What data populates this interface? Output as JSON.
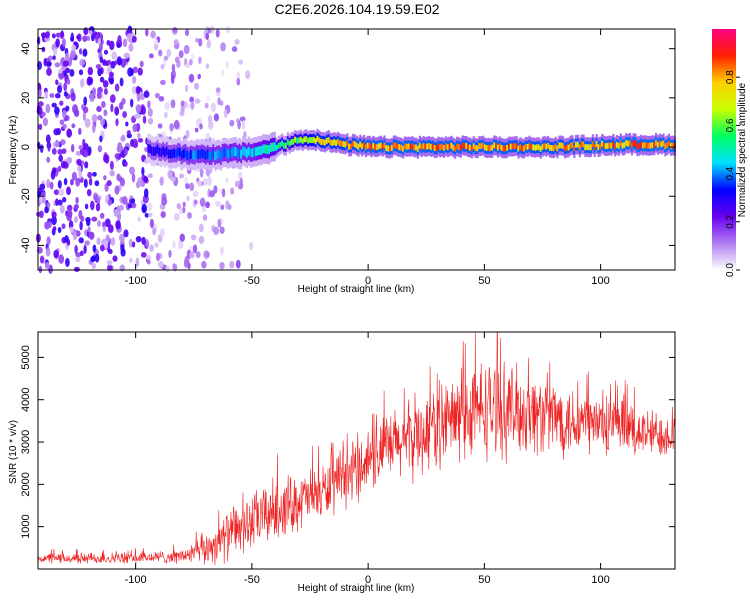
{
  "chart_data": [
    {
      "type": "heatmap",
      "title": "C2E6.2026.104.19.59.E02",
      "xlabel": "Height of straight line (km)",
      "ylabel": "Frequency (Hz)",
      "xlim": [
        -142,
        132
      ],
      "ylim": [
        -50,
        48
      ],
      "xticks": [
        -100,
        -50,
        0,
        50,
        100
      ],
      "yticks": [
        -40,
        -20,
        0,
        20,
        40
      ],
      "xtick_labels": [
        "-100",
        "-50",
        "0",
        "50",
        "100"
      ],
      "ytick_labels": [
        "-40",
        "-20",
        "0",
        "20",
        "40"
      ],
      "colorbar": {
        "label": "Normalized spectral amplitude",
        "range": [
          0.0,
          1.0
        ],
        "ticks": [
          0.0,
          0.2,
          0.4,
          0.6,
          0.8
        ],
        "tick_labels": [
          "0.0",
          "0.2",
          "0.4",
          "0.6",
          "0.8"
        ],
        "colormap": [
          "#ffffff",
          "#b07cf0",
          "#6a00f0",
          "#0000ff",
          "#00e0ff",
          "#00ff60",
          "#c8ff00",
          "#ffd000",
          "#ff2000",
          "#ff0080"
        ]
      },
      "trace": {
        "x": [
          -95,
          -80,
          -65,
          -50,
          -40,
          -30,
          -22,
          -10,
          0,
          20,
          50,
          80,
          110,
          132
        ],
        "frequency": [
          -1,
          -3,
          -3,
          -2,
          0,
          3,
          3,
          1,
          0,
          0,
          0,
          0,
          1,
          1
        ],
        "amplitude": [
          0.3,
          0.38,
          0.42,
          0.45,
          0.55,
          0.65,
          0.78,
          0.82,
          0.85,
          0.85,
          0.85,
          0.83,
          0.86,
          0.85
        ]
      },
      "noise_region_x": [
        -142,
        -65
      ]
    },
    {
      "type": "line",
      "title": "",
      "xlabel": "Height of straight line (km)",
      "ylabel": "SNR (10 * v/v)",
      "xlim": [
        -142,
        132
      ],
      "ylim": [
        0,
        5600
      ],
      "xticks": [
        -100,
        -50,
        0,
        50,
        100
      ],
      "yticks": [
        1000,
        2000,
        3000,
        4000,
        5000
      ],
      "xtick_labels": [
        "-100",
        "-50",
        "0",
        "50",
        "100"
      ],
      "ytick_labels": [
        "1000",
        "2000",
        "3000",
        "4000",
        "5000"
      ],
      "line_color": "#ee2222",
      "series": [
        {
          "name": "SNR",
          "x": [
            -142,
            -120,
            -100,
            -80,
            -70,
            -60,
            -50,
            -40,
            -30,
            -20,
            -10,
            0,
            10,
            20,
            30,
            40,
            50,
            60,
            70,
            80,
            90,
            100,
            110,
            120,
            132
          ],
          "center": [
            250,
            250,
            260,
            300,
            450,
            800,
            1100,
            1400,
            1600,
            1800,
            2100,
            2600,
            2900,
            3100,
            3400,
            3600,
            3800,
            3750,
            3700,
            3600,
            3500,
            3400,
            3300,
            3200,
            3200
          ],
          "spread": [
            150,
            160,
            160,
            200,
            450,
            700,
            800,
            900,
            800,
            800,
            800,
            900,
            1000,
            1100,
            1200,
            1300,
            1400,
            1300,
            1200,
            1100,
            1000,
            900,
            800,
            700,
            600
          ]
        }
      ]
    }
  ]
}
